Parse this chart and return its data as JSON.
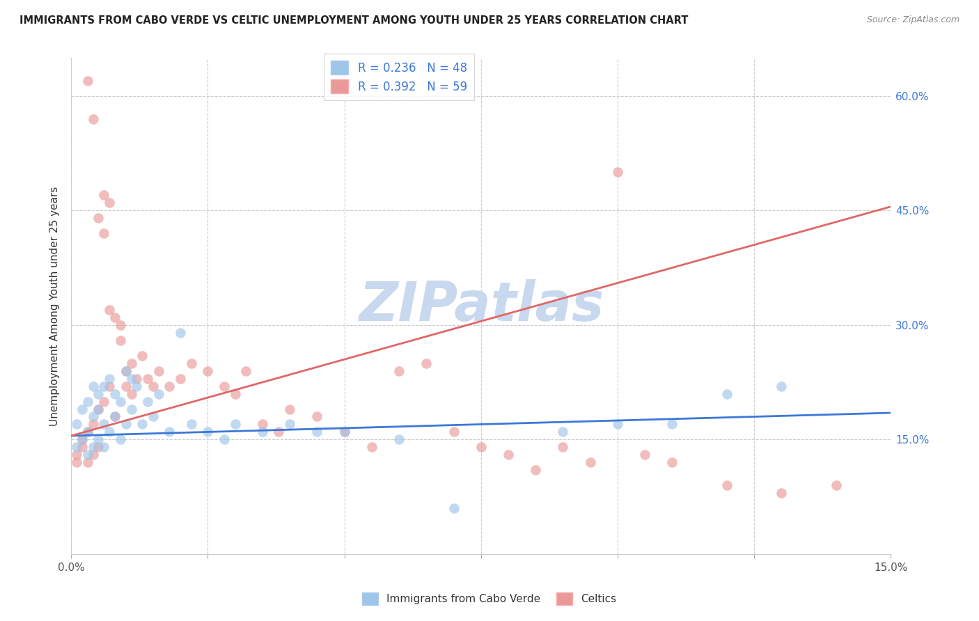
{
  "title": "IMMIGRANTS FROM CABO VERDE VS CELTIC UNEMPLOYMENT AMONG YOUTH UNDER 25 YEARS CORRELATION CHART",
  "source": "Source: ZipAtlas.com",
  "ylabel": "Unemployment Among Youth under 25 years",
  "y_tick_labels_right": [
    "15.0%",
    "30.0%",
    "45.0%",
    "60.0%"
  ],
  "y_ticks_right": [
    0.15,
    0.3,
    0.45,
    0.6
  ],
  "xlim": [
    0.0,
    0.15
  ],
  "ylim": [
    0.0,
    0.65
  ],
  "legend_label_blue_text": "Immigrants from Cabo Verde",
  "legend_label_pink_text": "Celtics",
  "color_blue": "#9fc5e8",
  "color_pink": "#ea9999",
  "color_blue_line": "#3c78d8",
  "color_pink_line": "#e06666",
  "watermark": "ZIPatlas",
  "watermark_color": "#c8d8ee",
  "blue_R": 0.236,
  "blue_N": 48,
  "pink_R": 0.392,
  "pink_N": 59,
  "blue_scatter_x": [
    0.001,
    0.001,
    0.002,
    0.002,
    0.003,
    0.003,
    0.003,
    0.004,
    0.004,
    0.004,
    0.005,
    0.005,
    0.005,
    0.006,
    0.006,
    0.006,
    0.007,
    0.007,
    0.008,
    0.008,
    0.009,
    0.009,
    0.01,
    0.01,
    0.011,
    0.011,
    0.012,
    0.013,
    0.014,
    0.015,
    0.016,
    0.018,
    0.02,
    0.022,
    0.025,
    0.028,
    0.03,
    0.035,
    0.04,
    0.045,
    0.05,
    0.06,
    0.07,
    0.09,
    0.1,
    0.11,
    0.12,
    0.13
  ],
  "blue_scatter_y": [
    0.17,
    0.14,
    0.19,
    0.15,
    0.2,
    0.16,
    0.13,
    0.22,
    0.18,
    0.14,
    0.21,
    0.19,
    0.15,
    0.22,
    0.17,
    0.14,
    0.23,
    0.16,
    0.21,
    0.18,
    0.2,
    0.15,
    0.24,
    0.17,
    0.23,
    0.19,
    0.22,
    0.17,
    0.2,
    0.18,
    0.21,
    0.16,
    0.29,
    0.17,
    0.16,
    0.15,
    0.17,
    0.16,
    0.17,
    0.16,
    0.16,
    0.15,
    0.06,
    0.16,
    0.17,
    0.17,
    0.21,
    0.22
  ],
  "pink_scatter_x": [
    0.001,
    0.001,
    0.002,
    0.002,
    0.003,
    0.003,
    0.003,
    0.004,
    0.004,
    0.004,
    0.005,
    0.005,
    0.005,
    0.006,
    0.006,
    0.006,
    0.007,
    0.007,
    0.007,
    0.008,
    0.008,
    0.009,
    0.009,
    0.01,
    0.01,
    0.011,
    0.011,
    0.012,
    0.013,
    0.014,
    0.015,
    0.016,
    0.018,
    0.02,
    0.022,
    0.025,
    0.028,
    0.03,
    0.032,
    0.035,
    0.038,
    0.04,
    0.045,
    0.05,
    0.055,
    0.06,
    0.065,
    0.07,
    0.075,
    0.08,
    0.085,
    0.09,
    0.095,
    0.1,
    0.105,
    0.11,
    0.12,
    0.13,
    0.14
  ],
  "pink_scatter_y": [
    0.12,
    0.13,
    0.14,
    0.15,
    0.12,
    0.16,
    0.62,
    0.13,
    0.17,
    0.57,
    0.14,
    0.19,
    0.44,
    0.47,
    0.2,
    0.42,
    0.46,
    0.22,
    0.32,
    0.31,
    0.18,
    0.3,
    0.28,
    0.24,
    0.22,
    0.25,
    0.21,
    0.23,
    0.26,
    0.23,
    0.22,
    0.24,
    0.22,
    0.23,
    0.25,
    0.24,
    0.22,
    0.21,
    0.24,
    0.17,
    0.16,
    0.19,
    0.18,
    0.16,
    0.14,
    0.24,
    0.25,
    0.16,
    0.14,
    0.13,
    0.11,
    0.14,
    0.12,
    0.5,
    0.13,
    0.12,
    0.09,
    0.08,
    0.09
  ],
  "blue_line_x": [
    0.0,
    0.15
  ],
  "blue_line_y": [
    0.155,
    0.185
  ],
  "pink_line_x": [
    0.0,
    0.15
  ],
  "pink_line_y": [
    0.155,
    0.455
  ]
}
